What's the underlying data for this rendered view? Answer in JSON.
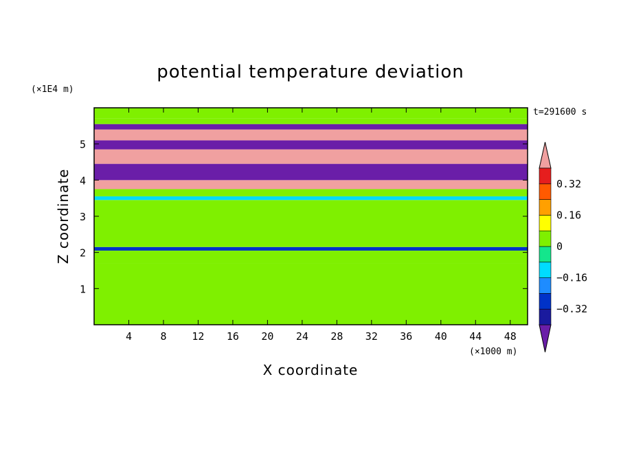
{
  "chart_data": {
    "type": "heatmap",
    "title": "potential temperature deviation",
    "xlabel": "X coordinate",
    "ylabel": "Z coordinate",
    "x_unit": "(×1000 m)",
    "y_unit": "(×1E4 m)",
    "time_label": "t=291600 s",
    "xlim": [
      0,
      50
    ],
    "ylim": [
      0,
      6
    ],
    "x_ticks": [
      4,
      8,
      12,
      16,
      20,
      24,
      28,
      32,
      36,
      40,
      44,
      48
    ],
    "y_ticks": [
      1,
      2,
      3,
      4,
      5
    ],
    "colorbar": {
      "levels": [
        -0.4,
        -0.32,
        -0.24,
        -0.16,
        -0.08,
        0,
        0.08,
        0.16,
        0.24,
        0.32,
        0.4
      ],
      "labels": [
        {
          "value": 0.32,
          "text": "0.32"
        },
        {
          "value": 0.16,
          "text": "0.16"
        },
        {
          "value": 0,
          "text": "0"
        },
        {
          "value": -0.16,
          "text": "−0.16"
        },
        {
          "value": -0.32,
          "text": "−0.32"
        }
      ],
      "colors": [
        "#6a1ea8",
        "#1a1a9e",
        "#0032c8",
        "#1e8cff",
        "#00dcff",
        "#14e68c",
        "#7ff000",
        "#ffff00",
        "#ffa000",
        "#ff5a00",
        "#e61e1e",
        "#f0a0a0"
      ]
    },
    "bands": [
      {
        "z": [
          0.0,
          1.7
        ],
        "value": 0.02
      },
      {
        "z": [
          1.7,
          2.05
        ],
        "value": 0.06
      },
      {
        "z": [
          2.05,
          2.15
        ],
        "value": -0.3
      },
      {
        "z": [
          2.15,
          3.0
        ],
        "value": 0.07
      },
      {
        "z": [
          3.0,
          3.45
        ],
        "value": 0.03
      },
      {
        "z": [
          3.45,
          3.55
        ],
        "value": -0.1
      },
      {
        "z": [
          3.55,
          3.75
        ],
        "value": 0.07
      },
      {
        "z": [
          3.75,
          4.0
        ],
        "value": 0.45
      },
      {
        "z": [
          4.0,
          4.45
        ],
        "value": -0.45
      },
      {
        "z": [
          4.45,
          4.85
        ],
        "value": 0.45
      },
      {
        "z": [
          4.85,
          5.1
        ],
        "value": -0.45
      },
      {
        "z": [
          5.1,
          5.4
        ],
        "value": 0.45
      },
      {
        "z": [
          5.4,
          5.55
        ],
        "value": -0.45
      },
      {
        "z": [
          5.55,
          5.7
        ],
        "value": 0.02
      },
      {
        "z": [
          5.7,
          6.0
        ],
        "value": 0.07
      }
    ]
  }
}
